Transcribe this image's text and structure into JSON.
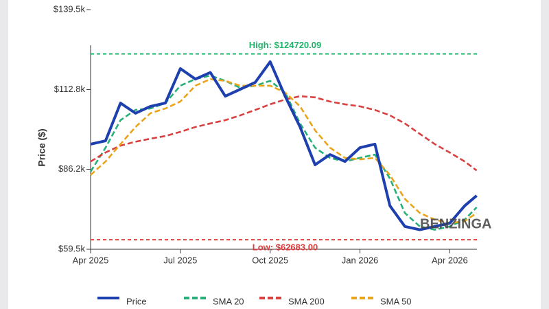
{
  "chart_data": {
    "type": "line",
    "y_label": "Price ($)",
    "watermark": "BENZINGA",
    "x": [
      0,
      0.5,
      1,
      1.5,
      2,
      2.5,
      3,
      3.5,
      4,
      4.5,
      5,
      5.5,
      6,
      6.5,
      7,
      7.5,
      8,
      8.5,
      9,
      9.5,
      10,
      10.5,
      11,
      11.5,
      12,
      12.5,
      12.9
    ],
    "xlim": [
      0,
      13
    ],
    "xticks": [
      {
        "value": 0,
        "label": "Apr 2025"
      },
      {
        "value": 3,
        "label": "Jul 2025"
      },
      {
        "value": 6,
        "label": "Oct 2025"
      },
      {
        "value": 9,
        "label": "Jan 2026"
      },
      {
        "value": 12,
        "label": "Apr 2026"
      }
    ],
    "ylim": [
      59500,
      139500
    ],
    "yticks": [
      {
        "value": 59500,
        "label": "$59.5k"
      },
      {
        "value": 86200,
        "label": "$86.2k"
      },
      {
        "value": 112800,
        "label": "$112.8k"
      },
      {
        "value": 139500,
        "label": "$139.5k"
      }
    ],
    "grid": false,
    "legend": "bottom",
    "reference_lines": [
      {
        "value": 124720.09,
        "label": "High: $124720.09",
        "color": "#1fb36b"
      },
      {
        "value": 62683,
        "label": "Low: $62683.00",
        "color": "#e03a3a"
      }
    ],
    "series": [
      {
        "name": "Price",
        "color": "#1e3fae",
        "values": [
          94600,
          95700,
          108300,
          104900,
          107200,
          108300,
          119800,
          116300,
          118500,
          110600,
          112900,
          115200,
          122100,
          110600,
          100300,
          87700,
          91100,
          88800,
          93400,
          94600,
          74000,
          67100,
          66000,
          67100,
          68200,
          74000,
          77400
        ]
      },
      {
        "name": "SMA 20",
        "color": "#25b07a",
        "values": [
          85400,
          93400,
          102600,
          106000,
          106500,
          108300,
          114100,
          116300,
          117500,
          115700,
          113400,
          114100,
          115700,
          111800,
          101500,
          93400,
          90000,
          88800,
          90000,
          91100,
          83100,
          71600,
          67100,
          66000,
          67100,
          69400,
          73500
        ]
      },
      {
        "name": "SMA 200",
        "color": "#d94040",
        "values": [
          88800,
          91800,
          94100,
          95400,
          96400,
          97300,
          98700,
          100300,
          101500,
          102600,
          104200,
          106000,
          107900,
          109500,
          110600,
          110200,
          108800,
          107900,
          107200,
          106000,
          104200,
          101500,
          98000,
          94600,
          91800,
          88800,
          85800
        ]
      },
      {
        "name": "SMA 50",
        "color": "#e9a41c",
        "values": [
          84300,
          88800,
          94600,
          100300,
          104900,
          106500,
          108800,
          114100,
          116300,
          115700,
          114100,
          114100,
          114100,
          111800,
          107200,
          99200,
          93400,
          90000,
          89500,
          90000,
          84300,
          76300,
          71600,
          69400,
          68200,
          68900,
          71600
        ]
      }
    ]
  }
}
